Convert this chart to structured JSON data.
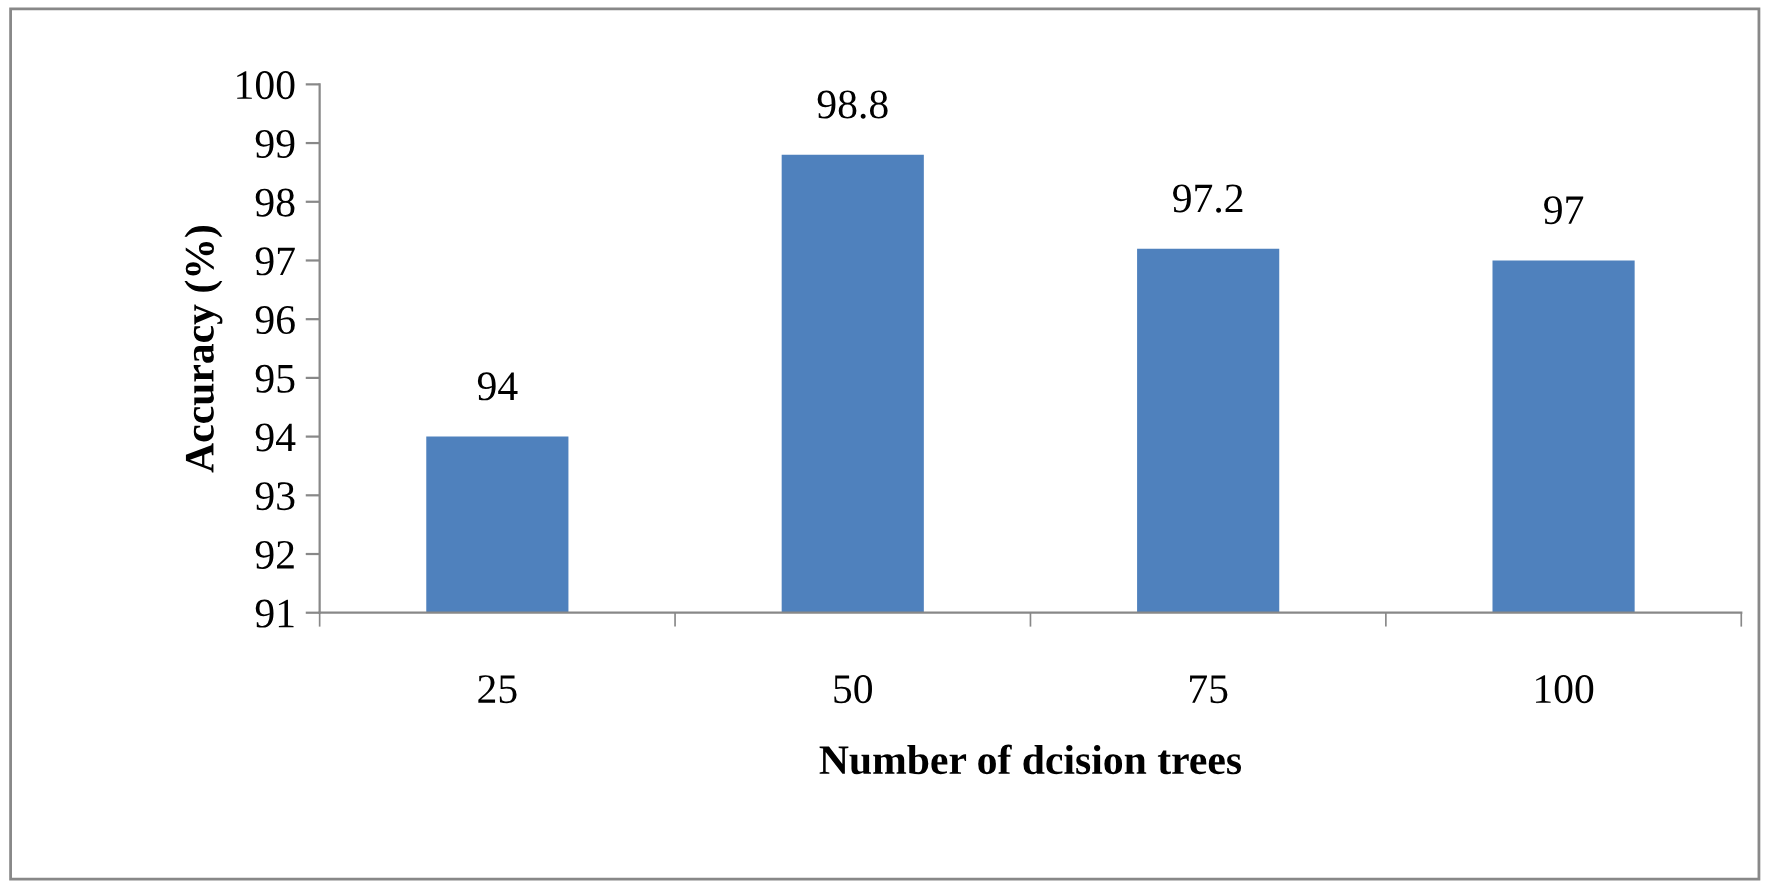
{
  "chart_data": {
    "type": "bar",
    "xlabel": "Number of dcision trees",
    "ylabel": "Accuracy (%)",
    "categories": [
      "25",
      "50",
      "75",
      "100"
    ],
    "values": [
      94,
      98.8,
      97.2,
      97
    ],
    "color": "#4f81bd",
    "ylim": [
      91,
      100
    ],
    "yticks": [
      91,
      92,
      93,
      94,
      95,
      96,
      97,
      98,
      99,
      100
    ],
    "data_labels": true,
    "grid": false,
    "legend": false
  }
}
